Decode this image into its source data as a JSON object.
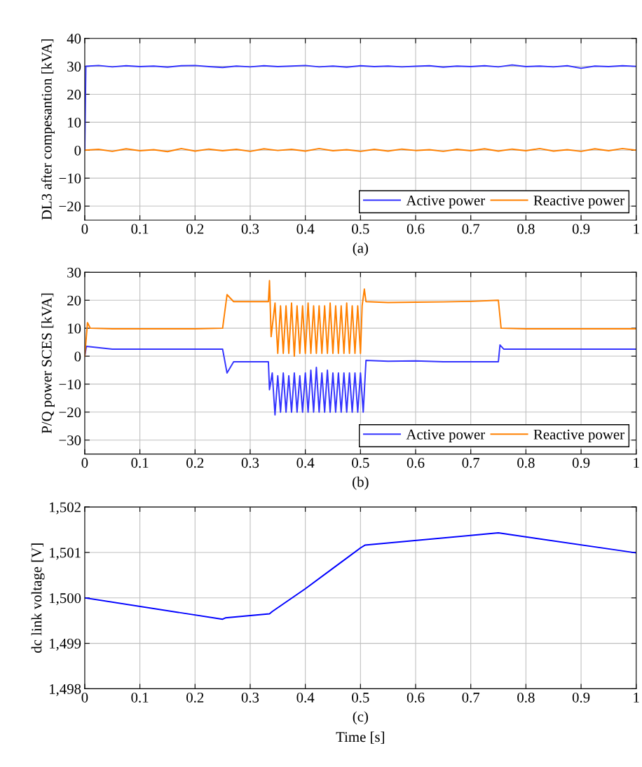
{
  "chart_data": [
    {
      "type": "line",
      "xlabel": "(a)",
      "ylabel": "DL3 after compesantion [kVA]",
      "xlim": [
        0,
        1
      ],
      "ylim": [
        -25,
        40
      ],
      "xticks": [
        0,
        0.1,
        0.2,
        0.3,
        0.4,
        0.5,
        0.6,
        0.7,
        0.8,
        0.9,
        1
      ],
      "yticks": [
        {
          "value": -20,
          "label": "−20"
        },
        {
          "value": -10,
          "label": "−10"
        },
        0,
        10,
        20,
        30,
        40
      ],
      "grid": true,
      "legend": "bottom right",
      "line_style": "solid",
      "marker": "none",
      "series": [
        {
          "name": "Active power",
          "color": "#3333ff",
          "x": [
            0,
            0.002,
            0.025,
            0.05,
            0.075,
            0.1,
            0.125,
            0.15,
            0.175,
            0.2,
            0.225,
            0.25,
            0.275,
            0.3,
            0.325,
            0.35,
            0.375,
            0.4,
            0.425,
            0.45,
            0.475,
            0.5,
            0.525,
            0.55,
            0.575,
            0.6,
            0.625,
            0.65,
            0.675,
            0.7,
            0.725,
            0.75,
            0.775,
            0.8,
            0.825,
            0.85,
            0.875,
            0.9,
            0.925,
            0.95,
            0.975,
            1
          ],
          "values": [
            0,
            30,
            30.3,
            29.8,
            30.2,
            29.9,
            30.1,
            29.7,
            30.2,
            30.3,
            29.9,
            29.6,
            30.1,
            29.8,
            30.2,
            29.9,
            30.1,
            30.3,
            29.8,
            30.1,
            29.7,
            30.2,
            29.9,
            30.1,
            29.8,
            30,
            30.2,
            29.7,
            30.1,
            29.9,
            30.2,
            29.8,
            30.5,
            29.9,
            30.1,
            29.8,
            30.2,
            29.3,
            30.1,
            29.9,
            30.2,
            30
          ]
        },
        {
          "name": "Reactive power",
          "color": "#ff8000",
          "x": [
            0,
            0.025,
            0.05,
            0.075,
            0.1,
            0.125,
            0.15,
            0.175,
            0.2,
            0.225,
            0.25,
            0.275,
            0.3,
            0.325,
            0.35,
            0.375,
            0.4,
            0.425,
            0.45,
            0.475,
            0.5,
            0.525,
            0.55,
            0.575,
            0.6,
            0.625,
            0.65,
            0.675,
            0.7,
            0.725,
            0.75,
            0.775,
            0.8,
            0.825,
            0.85,
            0.875,
            0.9,
            0.925,
            0.95,
            0.975,
            1
          ],
          "values": [
            0,
            0.3,
            -0.4,
            0.5,
            -0.2,
            0.2,
            -0.5,
            0.6,
            -0.3,
            0.4,
            -0.2,
            0.3,
            -0.4,
            0.5,
            -0.1,
            0.3,
            -0.3,
            0.6,
            -0.2,
            0.2,
            -0.4,
            0.3,
            -0.3,
            0.4,
            -0.1,
            0.2,
            -0.4,
            0.3,
            -0.2,
            0.5,
            -0.3,
            0.4,
            -0.2,
            0.6,
            -0.3,
            0.2,
            -0.4,
            0.5,
            -0.2,
            0.6,
            0
          ]
        }
      ]
    },
    {
      "type": "line",
      "xlabel": "(b)",
      "ylabel": "P/Q power SCES [kVA]",
      "xlim": [
        0,
        1
      ],
      "ylim": [
        -35,
        30
      ],
      "xticks": [
        0,
        0.1,
        0.2,
        0.3,
        0.4,
        0.5,
        0.6,
        0.7,
        0.8,
        0.9,
        1
      ],
      "yticks": [
        {
          "value": -30,
          "label": "−30"
        },
        {
          "value": -20,
          "label": "−20"
        },
        {
          "value": -10,
          "label": "−10"
        },
        0,
        10,
        20,
        30
      ],
      "grid": true,
      "legend": "bottom right",
      "line_style": "solid",
      "marker": "none",
      "series": [
        {
          "name": "Active power",
          "color": "#3333ff",
          "x": [
            0,
            0.003,
            0.05,
            0.1,
            0.15,
            0.2,
            0.25,
            0.258,
            0.27,
            0.3,
            0.333,
            0.335,
            0.34,
            0.345,
            0.35,
            0.355,
            0.36,
            0.365,
            0.37,
            0.375,
            0.38,
            0.385,
            0.39,
            0.395,
            0.4,
            0.405,
            0.41,
            0.415,
            0.42,
            0.425,
            0.43,
            0.435,
            0.44,
            0.445,
            0.45,
            0.455,
            0.46,
            0.465,
            0.47,
            0.475,
            0.48,
            0.485,
            0.49,
            0.495,
            0.5,
            0.505,
            0.51,
            0.55,
            0.6,
            0.65,
            0.7,
            0.75,
            0.753,
            0.76,
            0.8,
            0.85,
            0.9,
            0.95,
            1
          ],
          "values": [
            0,
            3.5,
            2.5,
            2.5,
            2.5,
            2.5,
            2.5,
            -6,
            -2,
            -2,
            -2,
            -12,
            -6,
            -21,
            -7,
            -20,
            -6,
            -20,
            -7,
            -20,
            -6,
            -20,
            -7,
            -20,
            -6,
            -20,
            -5,
            -20,
            -4,
            -20,
            -6,
            -20,
            -5,
            -20,
            -6,
            -20,
            -6,
            -20,
            -6,
            -20,
            -6,
            -20,
            -6,
            -20,
            -6,
            -20,
            -1.5,
            -1.8,
            -1.7,
            -2,
            -2,
            -2,
            4,
            2.5,
            2.5,
            2.5,
            2.5,
            2.5,
            2.5
          ]
        },
        {
          "name": "Reactive power",
          "color": "#ff8000",
          "x": [
            0,
            0.005,
            0.01,
            0.05,
            0.1,
            0.15,
            0.2,
            0.25,
            0.258,
            0.27,
            0.3,
            0.333,
            0.335,
            0.338,
            0.345,
            0.35,
            0.355,
            0.36,
            0.365,
            0.37,
            0.375,
            0.38,
            0.385,
            0.39,
            0.395,
            0.4,
            0.405,
            0.41,
            0.415,
            0.42,
            0.425,
            0.43,
            0.435,
            0.44,
            0.445,
            0.45,
            0.455,
            0.46,
            0.465,
            0.47,
            0.475,
            0.48,
            0.485,
            0.49,
            0.495,
            0.5,
            0.503,
            0.507,
            0.51,
            0.55,
            0.6,
            0.65,
            0.7,
            0.75,
            0.755,
            0.8,
            0.85,
            0.9,
            0.95,
            1
          ],
          "values": [
            0,
            12,
            10,
            9.8,
            9.8,
            9.8,
            9.8,
            10,
            22,
            19.5,
            19.5,
            19.5,
            27,
            7,
            19,
            1,
            18,
            1,
            18,
            1,
            19,
            0,
            18,
            1,
            18,
            1,
            19,
            1,
            18,
            1,
            18,
            1,
            18,
            1,
            19,
            1,
            18,
            1,
            18,
            1,
            19,
            1,
            18,
            1,
            18,
            1,
            18,
            24,
            19.5,
            19.2,
            19.3,
            19.4,
            19.6,
            20,
            10,
            9.8,
            9.8,
            9.8,
            9.8,
            9.8
          ]
        }
      ]
    },
    {
      "type": "line",
      "xlabel": "(c)",
      "ylabel": "dc link voltage [V]",
      "annotations": [
        "Time [s]"
      ],
      "xlim": [
        0,
        1
      ],
      "ylim": [
        1498,
        1502
      ],
      "xticks": [
        0,
        0.1,
        0.2,
        0.3,
        0.4,
        0.5,
        0.6,
        0.7,
        0.8,
        0.9,
        1
      ],
      "yticks": [
        {
          "value": 1498,
          "label": "1,498"
        },
        {
          "value": 1499,
          "label": "1,499"
        },
        {
          "value": 1500,
          "label": "1,500"
        },
        {
          "value": 1501,
          "label": "1,501"
        },
        {
          "value": 1502,
          "label": "1,502"
        }
      ],
      "grid": true,
      "line_style": "solid",
      "marker": "none",
      "series": [
        {
          "color": "#0000ff",
          "x": [
            0,
            0.25,
            0.255,
            0.335,
            0.34,
            0.4,
            0.45,
            0.5,
            0.508,
            0.75,
            1
          ],
          "values": [
            1500,
            1499.53,
            1499.56,
            1499.65,
            1499.7,
            1500.2,
            1500.65,
            1501.1,
            1501.16,
            1501.43,
            1500.99
          ]
        }
      ]
    }
  ]
}
